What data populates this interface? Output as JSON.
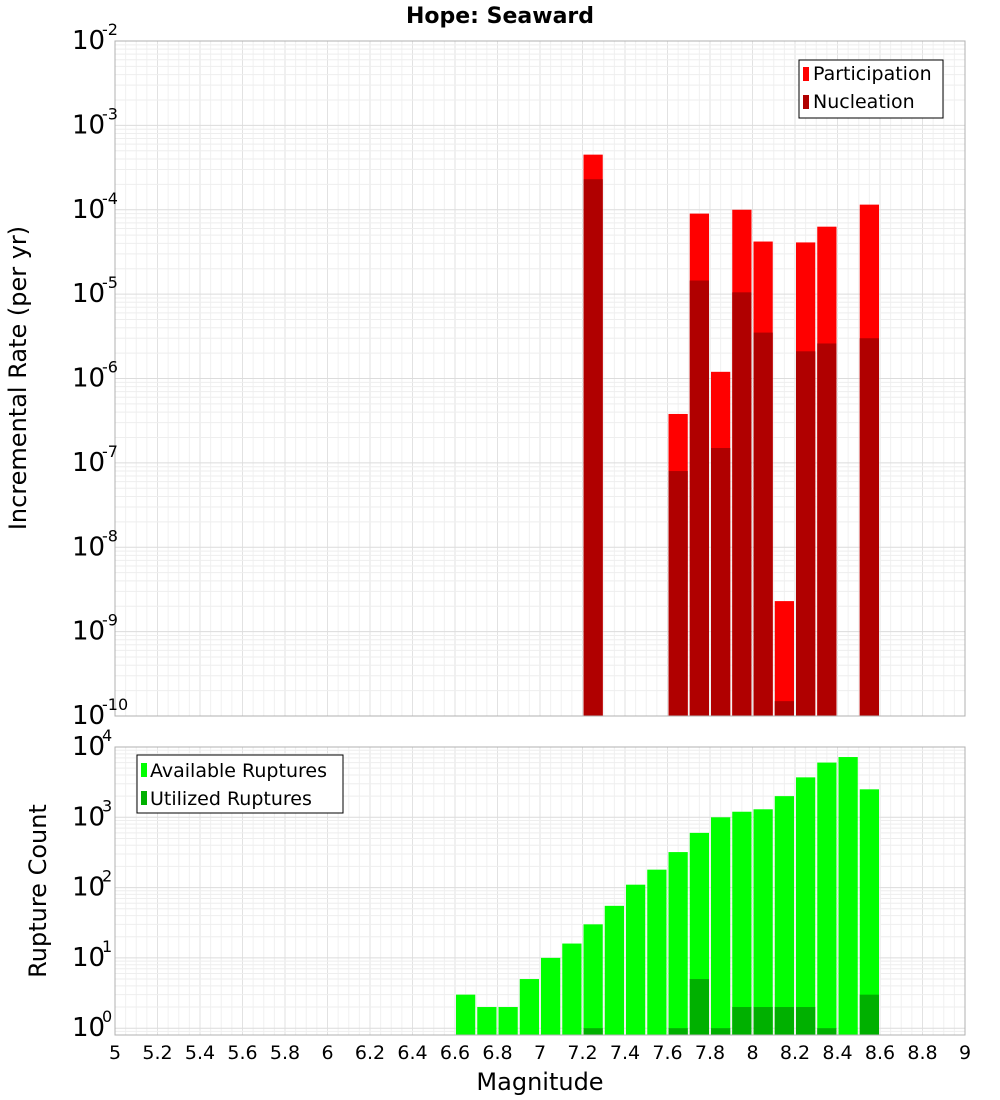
{
  "chart_data": [
    {
      "type": "bar",
      "title": "Hope: Seaward",
      "xlabel": "",
      "ylabel": "Incremental Rate (per yr)",
      "xlim": [
        5,
        9
      ],
      "ylim": [
        1e-10,
        0.01
      ],
      "yscale": "log",
      "grid": true,
      "legend_position": "top-right",
      "series": [
        {
          "name": "Participation",
          "color": "#ff0000",
          "points": [
            [
              7.25,
              0.00045
            ],
            [
              7.65,
              3.8e-07
            ],
            [
              7.75,
              9e-05
            ],
            [
              7.85,
              1.2e-06
            ],
            [
              7.95,
              0.0001
            ],
            [
              8.05,
              4.2e-05
            ],
            [
              8.15,
              2.3e-09
            ],
            [
              8.25,
              4.1e-05
            ],
            [
              8.35,
              6.3e-05
            ],
            [
              8.55,
              0.000115
            ]
          ]
        },
        {
          "name": "Nucleation",
          "color": "#b00000",
          "points": [
            [
              7.25,
              0.00023
            ],
            [
              7.65,
              8e-08
            ],
            [
              7.75,
              1.45e-05
            ],
            [
              7.85,
              1.5e-07
            ],
            [
              7.95,
              1.05e-05
            ],
            [
              8.05,
              3.5e-06
            ],
            [
              8.15,
              1.5e-10
            ],
            [
              8.25,
              2.1e-06
            ],
            [
              8.35,
              2.6e-06
            ],
            [
              8.55,
              3e-06
            ]
          ]
        }
      ]
    },
    {
      "type": "bar",
      "title": "",
      "xlabel": "Magnitude",
      "ylabel": "Rupture Count",
      "xlim": [
        5,
        9
      ],
      "ylim": [
        0.8,
        10000
      ],
      "yscale": "log",
      "grid": true,
      "legend_position": "top-left",
      "x_ticks": [
        "5",
        "5.2",
        "5.4",
        "5.6",
        "5.8",
        "6",
        "6.2",
        "6.4",
        "6.6",
        "6.8",
        "7",
        "7.2",
        "7.4",
        "7.6",
        "7.8",
        "8",
        "8.2",
        "8.4",
        "8.6",
        "8.8",
        "9"
      ],
      "series": [
        {
          "name": "Available Ruptures",
          "color": "#00ff00",
          "points": [
            [
              6.65,
              3
            ],
            [
              6.75,
              2
            ],
            [
              6.85,
              2
            ],
            [
              6.95,
              5
            ],
            [
              7.05,
              10
            ],
            [
              7.15,
              16
            ],
            [
              7.25,
              30
            ],
            [
              7.35,
              55
            ],
            [
              7.45,
              110
            ],
            [
              7.55,
              180
            ],
            [
              7.65,
              320
            ],
            [
              7.75,
              600
            ],
            [
              7.85,
              1000
            ],
            [
              7.95,
              1200
            ],
            [
              8.05,
              1300
            ],
            [
              8.15,
              2000
            ],
            [
              8.25,
              3700
            ],
            [
              8.35,
              6000
            ],
            [
              8.45,
              7200
            ],
            [
              8.55,
              2500
            ]
          ]
        },
        {
          "name": "Utilized Ruptures",
          "color": "#00b000",
          "points": [
            [
              7.25,
              1
            ],
            [
              7.65,
              1
            ],
            [
              7.75,
              5
            ],
            [
              7.85,
              1
            ],
            [
              7.95,
              2
            ],
            [
              8.05,
              2
            ],
            [
              8.15,
              2
            ],
            [
              8.25,
              2
            ],
            [
              8.35,
              1
            ],
            [
              8.55,
              3
            ]
          ]
        }
      ]
    }
  ]
}
